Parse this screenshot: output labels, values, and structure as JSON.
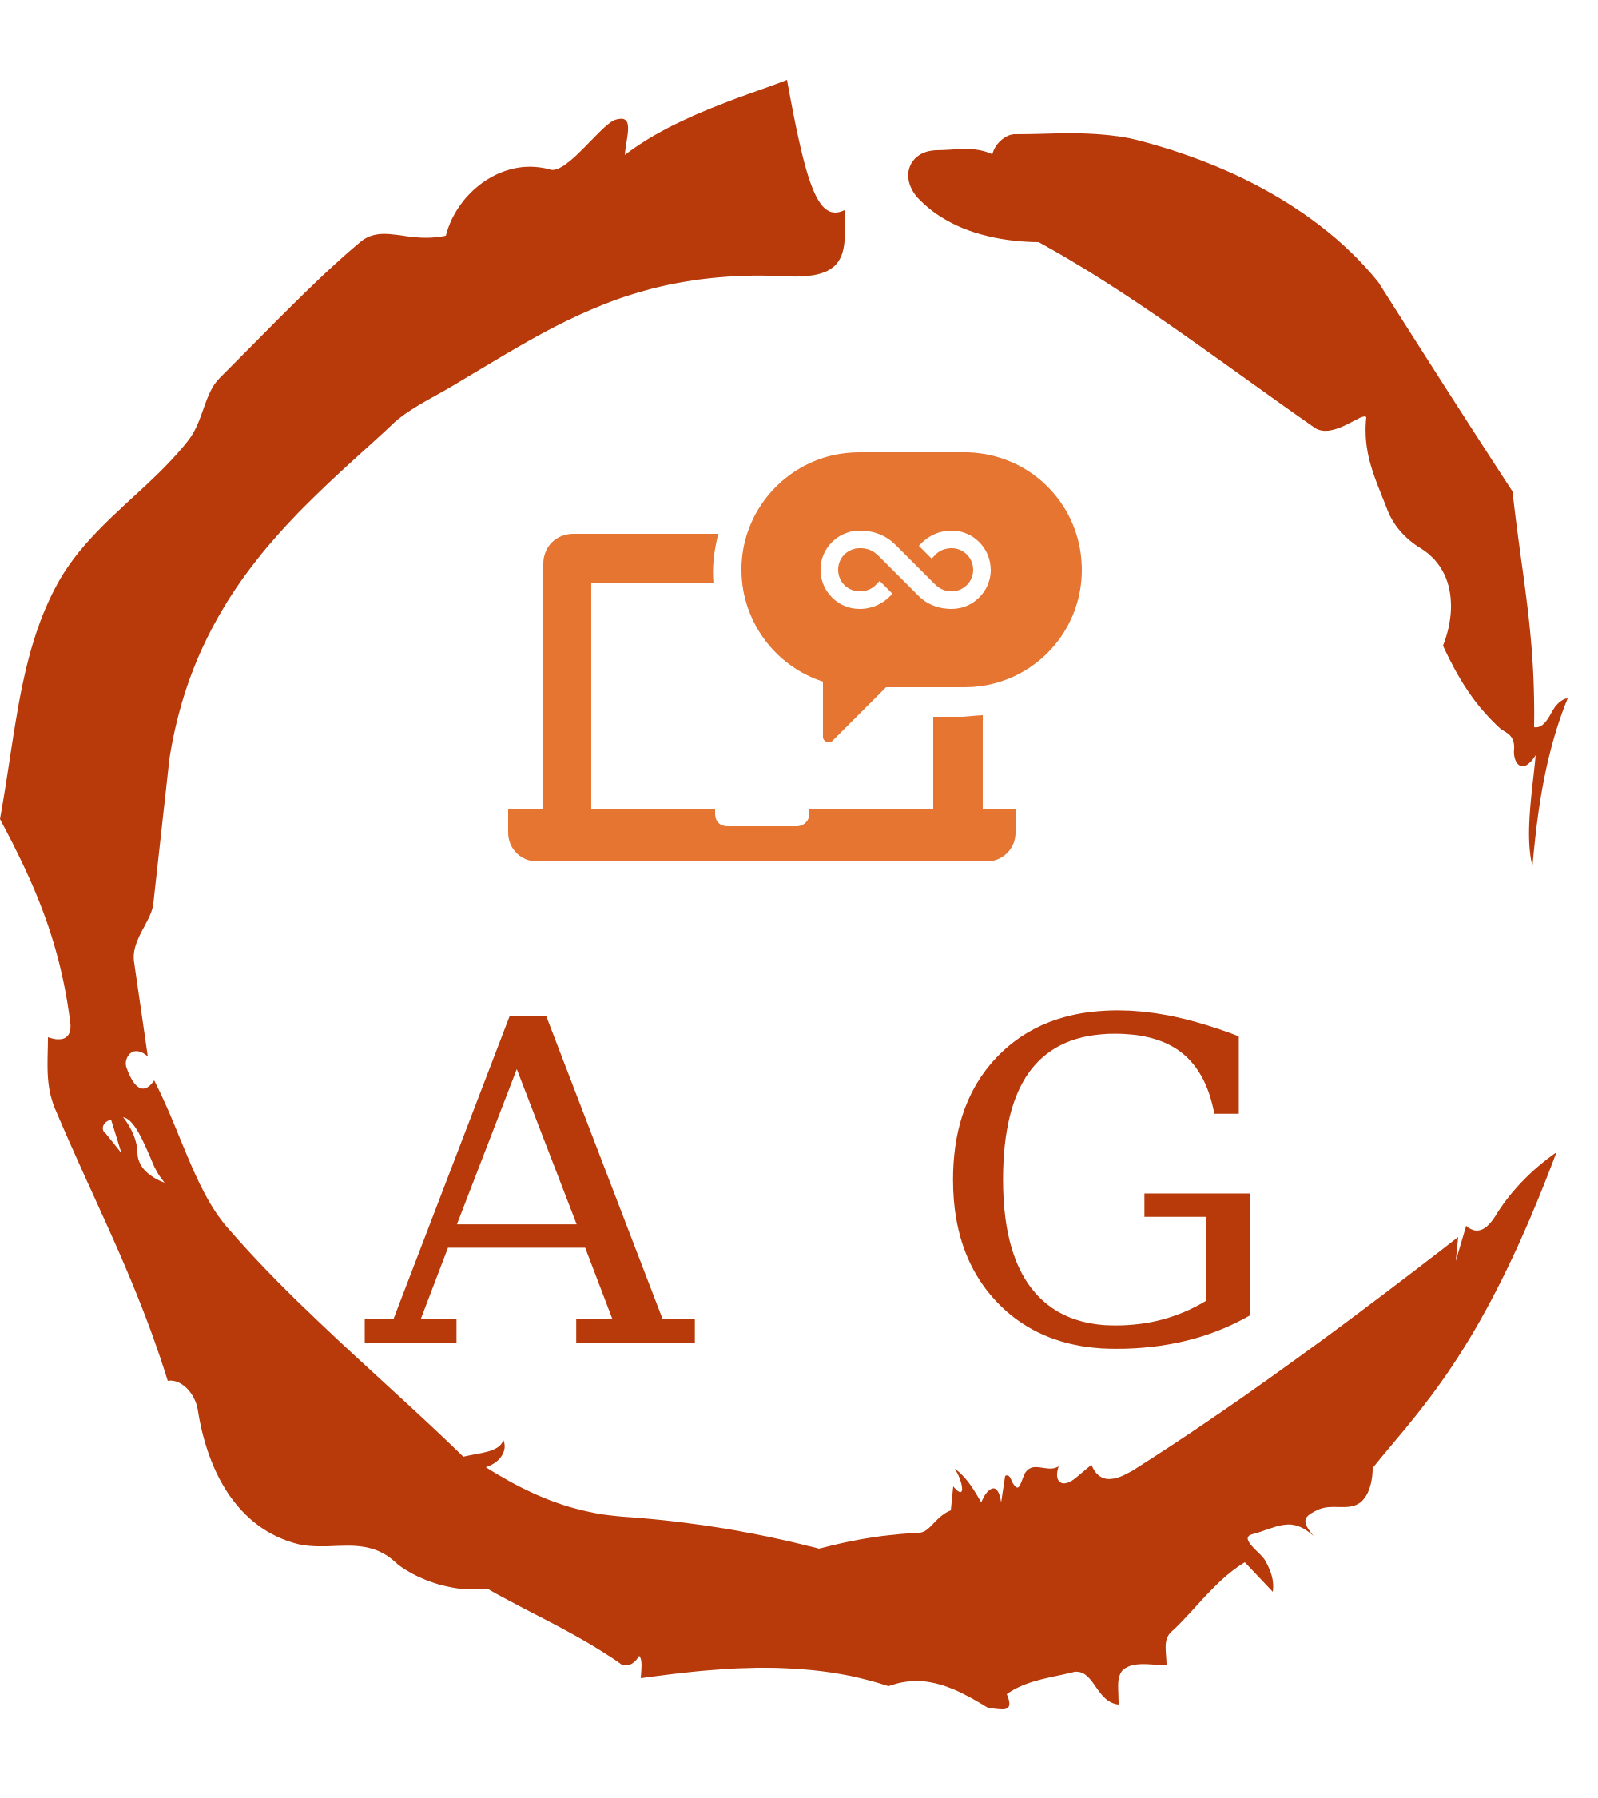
{
  "logo": {
    "monogram": {
      "first_letter": "A",
      "second_letter": "G"
    },
    "icons": {
      "frame": "brush-circle-frame",
      "device": "laptop-icon",
      "bubble": "speech-bubble-icon",
      "symbol": "infinity-icon"
    }
  },
  "colors": {
    "frame": "#b83a0b",
    "icon": "#e57530",
    "background": "#ffffff",
    "symbol": "#ffffff"
  }
}
